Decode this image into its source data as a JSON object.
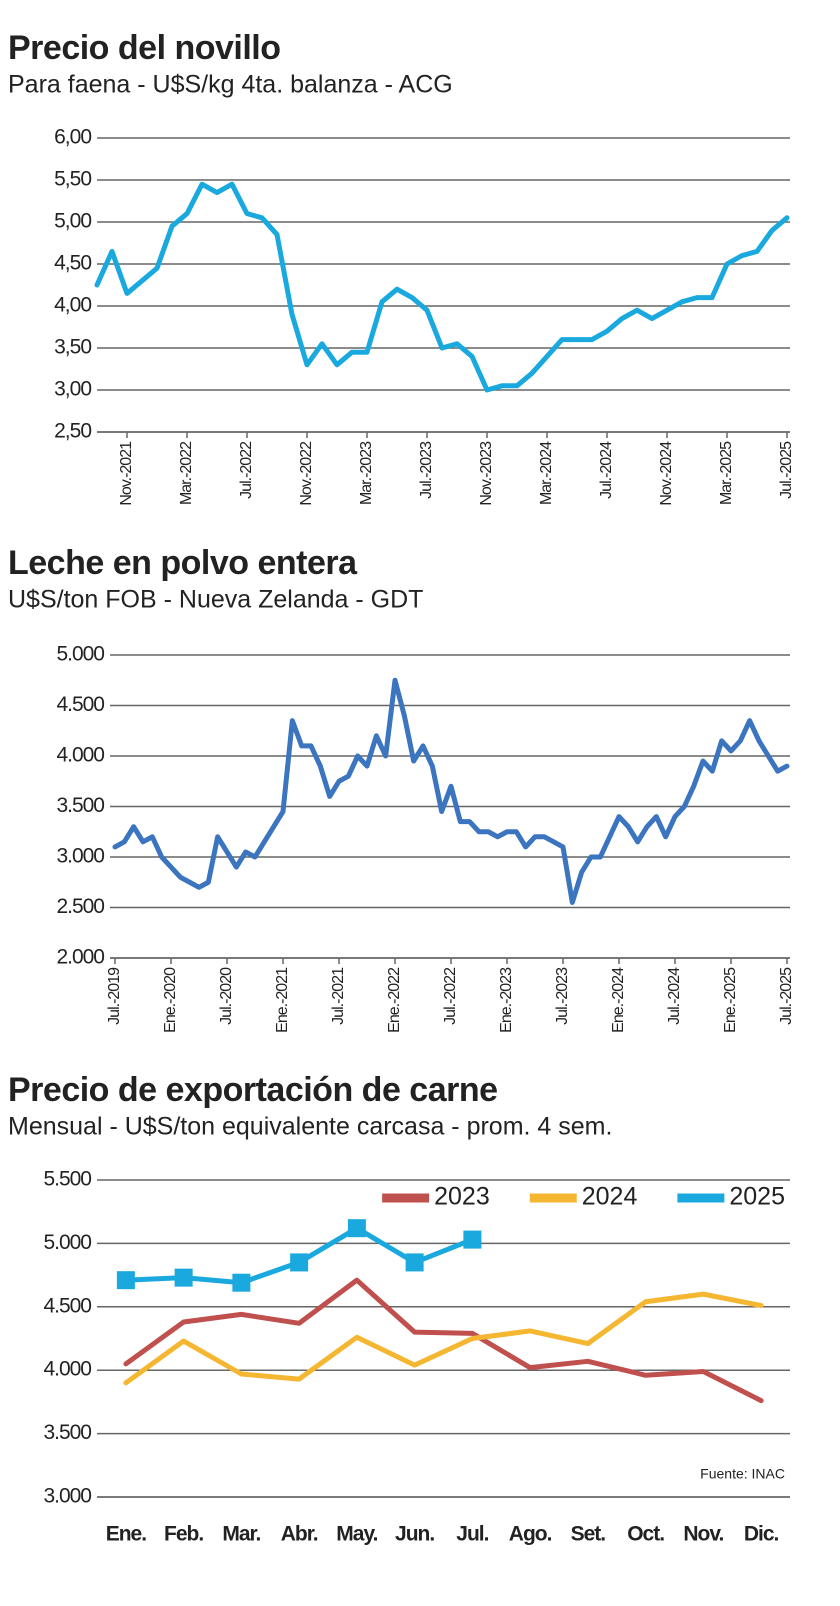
{
  "chart_data": [
    {
      "type": "line",
      "title": "Precio del novillo",
      "subtitle": "Para faena - U$S/kg 4ta. balanza - ACG",
      "categories": [
        null,
        null,
        "Nov.-2021",
        null,
        null,
        null,
        "Mar.-2022",
        null,
        null,
        null,
        "Jul.-2022",
        null,
        null,
        null,
        "Nov.-2022",
        null,
        null,
        null,
        "Mar.-2023",
        null,
        null,
        null,
        "Jul.-2023",
        null,
        null,
        null,
        "Nov.-2023",
        null,
        null,
        null,
        "Mar.-2024",
        null,
        null,
        null,
        "Jul.-2024",
        null,
        null,
        null,
        "Nov.-2024",
        null,
        null,
        null,
        "Mar.-2025",
        null,
        null,
        null,
        "Jul.-2025"
      ],
      "values": [
        4.25,
        4.65,
        4.15,
        4.3,
        4.45,
        4.95,
        5.1,
        5.45,
        5.35,
        5.45,
        5.1,
        5.05,
        4.85,
        3.9,
        3.3,
        3.55,
        3.3,
        3.45,
        3.45,
        4.05,
        4.2,
        4.1,
        3.95,
        3.5,
        3.55,
        3.4,
        3.0,
        3.05,
        3.05,
        3.2,
        3.4,
        3.6,
        3.6,
        3.6,
        3.7,
        3.85,
        3.95,
        3.85,
        3.95,
        4.05,
        4.1,
        4.1,
        4.5,
        4.6,
        4.65,
        4.9,
        5.05
      ],
      "color": "#1aa9df",
      "ylim": [
        2.5,
        6.0
      ],
      "yticks": [
        {
          "value": 2.5,
          "label": "2,50"
        },
        {
          "value": 3.0,
          "label": "3,00"
        },
        {
          "value": 3.5,
          "label": "3,50"
        },
        {
          "value": 4.0,
          "label": "4,00"
        },
        {
          "value": 4.5,
          "label": "4,50"
        },
        {
          "value": 5.0,
          "label": "5,00"
        },
        {
          "value": 5.5,
          "label": "5,50"
        },
        {
          "value": 6.0,
          "label": "6,00"
        }
      ],
      "grid": true
    },
    {
      "type": "line",
      "title": "Leche en polvo entera",
      "subtitle": "U$S/ton FOB - Nueva Zelanda - GDT",
      "categories": [
        "Jul.-2019",
        null,
        null,
        null,
        null,
        null,
        "Ene.-2020",
        null,
        null,
        null,
        null,
        null,
        "Jul.-2020",
        null,
        null,
        null,
        null,
        null,
        "Ene.-2021",
        null,
        null,
        null,
        null,
        null,
        "Jul.-2021",
        null,
        null,
        null,
        null,
        null,
        "Ene.-2022",
        null,
        null,
        null,
        null,
        null,
        "Jul.-2022",
        null,
        null,
        null,
        null,
        null,
        "Ene.-2023",
        null,
        null,
        null,
        null,
        null,
        "Jul.-2023",
        null,
        null,
        null,
        null,
        null,
        "Ene.-2024",
        null,
        null,
        null,
        null,
        null,
        "Jul.-2024",
        null,
        null,
        null,
        null,
        null,
        "Ene.-2025",
        null,
        null,
        null,
        null,
        null,
        "Jul.-2025"
      ],
      "values": [
        3100,
        3150,
        3300,
        3150,
        3200,
        3000,
        2900,
        2800,
        2750,
        2700,
        2750,
        3200,
        3050,
        2900,
        3050,
        3000,
        3150,
        3300,
        3450,
        4350,
        4100,
        4100,
        3900,
        3600,
        3750,
        3800,
        4000,
        3900,
        4200,
        4000,
        4750,
        4400,
        3950,
        4100,
        3900,
        3450,
        3700,
        3350,
        3350,
        3250,
        3250,
        3200,
        3250,
        3250,
        3100,
        3200,
        3200,
        3150,
        3100,
        2550,
        2850,
        3000,
        3000,
        3200,
        3400,
        3300,
        3150,
        3300,
        3400,
        3200,
        3400,
        3500,
        3700,
        3950,
        3850,
        4150,
        4050,
        4150,
        4350,
        4150,
        4000,
        3850,
        3900
      ],
      "color": "#3b74bf",
      "ylim": [
        2000,
        5000
      ],
      "yticks": [
        {
          "value": 2000,
          "label": "2.000"
        },
        {
          "value": 2500,
          "label": "2.500"
        },
        {
          "value": 3000,
          "label": "3.000"
        },
        {
          "value": 3500,
          "label": "3.500"
        },
        {
          "value": 4000,
          "label": "4.000"
        },
        {
          "value": 4500,
          "label": "4.500"
        },
        {
          "value": 5000,
          "label": "5.000"
        }
      ],
      "grid": true
    },
    {
      "type": "line",
      "title": "Precio de exportación de carne",
      "subtitle": "Mensual - U$S/ton equivalente carcasa - prom. 4 sem.",
      "categories": [
        "Ene.",
        "Feb.",
        "Mar.",
        "Abr.",
        "May.",
        "Jun.",
        "Jul.",
        "Ago.",
        "Set.",
        "Oct.",
        "Nov.",
        "Dic."
      ],
      "series": [
        {
          "name": "2023",
          "color": "#c0504d",
          "values": [
            4050,
            4380,
            4440,
            4370,
            4710,
            4300,
            4290,
            4020,
            4070,
            3960,
            3990,
            3760
          ]
        },
        {
          "name": "2024",
          "color": "#f5b731",
          "values": [
            3900,
            4230,
            3970,
            3930,
            4260,
            4040,
            4250,
            4310,
            4210,
            4540,
            4600,
            4510
          ]
        },
        {
          "name": "2025",
          "color": "#1aa9df",
          "marker": "square",
          "values": [
            4710,
            4730,
            4690,
            4850,
            5120,
            4850,
            5030,
            null,
            null,
            null,
            null,
            null
          ]
        }
      ],
      "ylim": [
        3000,
        5500
      ],
      "yticks": [
        {
          "value": 3000,
          "label": "3.000"
        },
        {
          "value": 3500,
          "label": "3.500"
        },
        {
          "value": 4000,
          "label": "4.000"
        },
        {
          "value": 4500,
          "label": "4.500"
        },
        {
          "value": 5000,
          "label": "5.000"
        },
        {
          "value": 5500,
          "label": "5.500"
        }
      ],
      "grid": true,
      "legend": "top-right",
      "note": "Fuente: INAC"
    }
  ]
}
